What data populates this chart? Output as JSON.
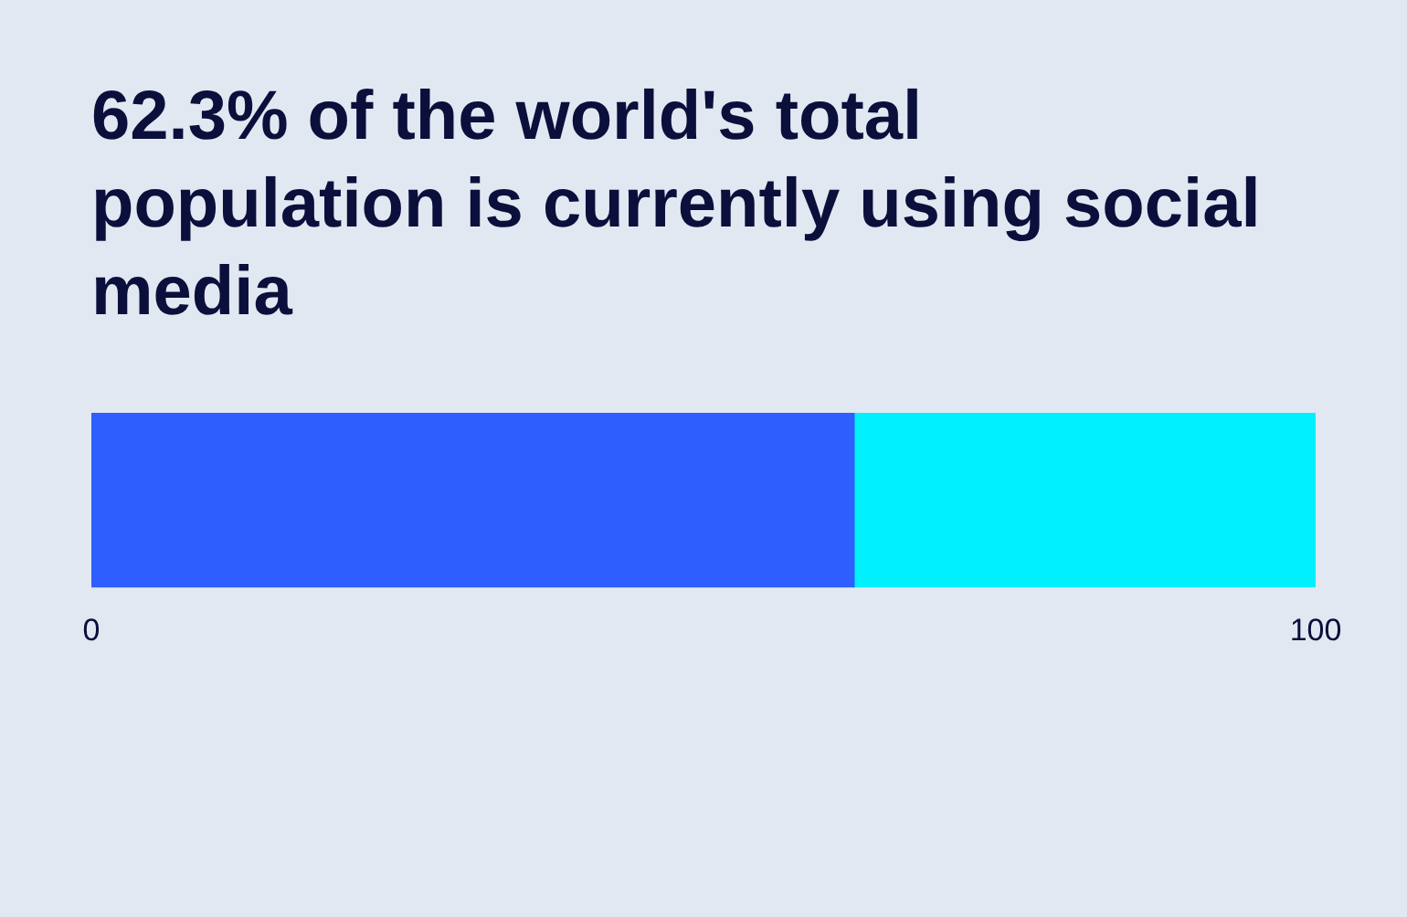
{
  "chart_data": {
    "type": "bar",
    "title": "62.3% of the world's total population is currently using social media",
    "orientation": "horizontal",
    "stacked": true,
    "categories": [
      null
    ],
    "series": [
      {
        "color": "#2e5efe",
        "values": [
          62.3
        ]
      },
      {
        "color": "#00f0fe",
        "values": [
          37.7
        ]
      }
    ],
    "xlim": [
      0,
      100
    ],
    "xticks": [
      0,
      100
    ]
  }
}
